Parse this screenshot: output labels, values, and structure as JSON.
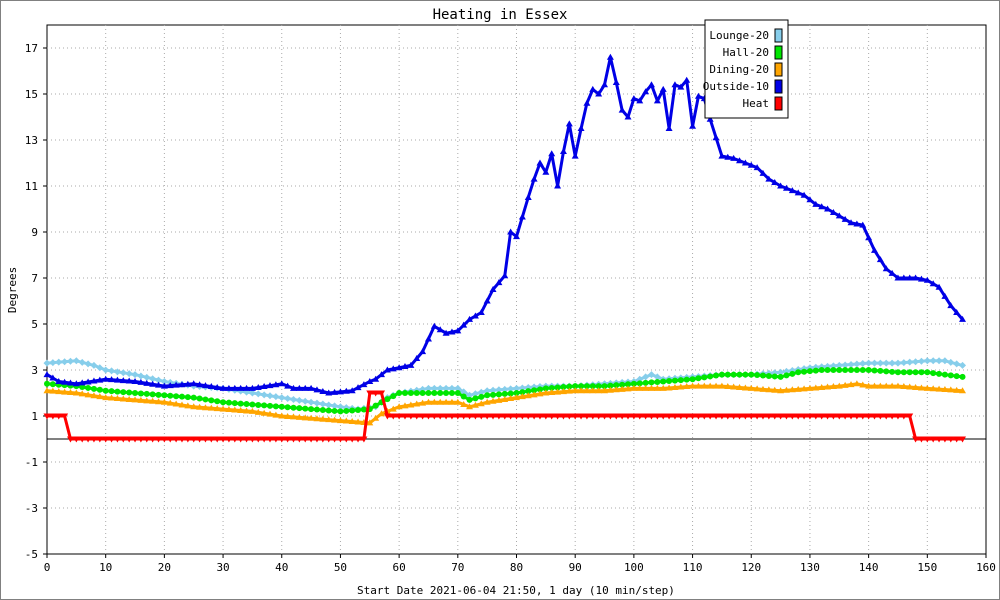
{
  "chart_data": {
    "type": "line",
    "title": "Heating in Essex",
    "xlabel": "Start Date 2021-06-04 21:50, 1 day (10 min/step)",
    "ylabel": "Degrees",
    "xlim": [
      0,
      160
    ],
    "ylim": [
      -5,
      18
    ],
    "x_ticks": [
      0,
      10,
      20,
      30,
      40,
      50,
      60,
      70,
      80,
      90,
      100,
      110,
      120,
      130,
      140,
      150,
      160
    ],
    "y_ticks": [
      -5,
      -3,
      -1,
      1,
      3,
      5,
      7,
      9,
      11,
      13,
      15,
      17
    ],
    "grid": true,
    "legend_position": "top-right",
    "series": [
      {
        "name": "Lounge-20",
        "color": "#87ceeb",
        "marker": "diamond",
        "points": [
          [
            0,
            3.3
          ],
          [
            5,
            3.4
          ],
          [
            8,
            3.2
          ],
          [
            10,
            3.0
          ],
          [
            15,
            2.8
          ],
          [
            20,
            2.5
          ],
          [
            25,
            2.3
          ],
          [
            30,
            2.2
          ],
          [
            35,
            2.0
          ],
          [
            40,
            1.8
          ],
          [
            45,
            1.6
          ],
          [
            50,
            1.4
          ],
          [
            53,
            1.3
          ],
          [
            56,
            1.4
          ],
          [
            58,
            1.8
          ],
          [
            60,
            2.0
          ],
          [
            65,
            2.2
          ],
          [
            70,
            2.2
          ],
          [
            72,
            1.9
          ],
          [
            75,
            2.1
          ],
          [
            80,
            2.2
          ],
          [
            85,
            2.3
          ],
          [
            90,
            2.3
          ],
          [
            95,
            2.4
          ],
          [
            100,
            2.5
          ],
          [
            103,
            2.8
          ],
          [
            105,
            2.6
          ],
          [
            110,
            2.7
          ],
          [
            115,
            2.8
          ],
          [
            120,
            2.8
          ],
          [
            125,
            2.9
          ],
          [
            130,
            3.1
          ],
          [
            135,
            3.2
          ],
          [
            140,
            3.3
          ],
          [
            145,
            3.3
          ],
          [
            150,
            3.4
          ],
          [
            153,
            3.4
          ],
          [
            156,
            3.2
          ]
        ]
      },
      {
        "name": "Hall-20",
        "color": "#00e600",
        "marker": "circle",
        "points": [
          [
            0,
            2.4
          ],
          [
            5,
            2.3
          ],
          [
            10,
            2.1
          ],
          [
            15,
            2.0
          ],
          [
            20,
            1.9
          ],
          [
            25,
            1.8
          ],
          [
            30,
            1.6
          ],
          [
            35,
            1.5
          ],
          [
            40,
            1.4
          ],
          [
            45,
            1.3
          ],
          [
            50,
            1.2
          ],
          [
            55,
            1.3
          ],
          [
            57,
            1.6
          ],
          [
            60,
            2.0
          ],
          [
            65,
            2.0
          ],
          [
            70,
            2.0
          ],
          [
            72,
            1.7
          ],
          [
            75,
            1.9
          ],
          [
            80,
            2.0
          ],
          [
            85,
            2.2
          ],
          [
            90,
            2.3
          ],
          [
            95,
            2.3
          ],
          [
            100,
            2.4
          ],
          [
            105,
            2.5
          ],
          [
            110,
            2.6
          ],
          [
            115,
            2.8
          ],
          [
            120,
            2.8
          ],
          [
            125,
            2.7
          ],
          [
            128,
            2.9
          ],
          [
            132,
            3.0
          ],
          [
            140,
            3.0
          ],
          [
            145,
            2.9
          ],
          [
            150,
            2.9
          ],
          [
            156,
            2.7
          ]
        ]
      },
      {
        "name": "Dining-20",
        "color": "#ffa500",
        "marker": "triangle",
        "points": [
          [
            0,
            2.1
          ],
          [
            5,
            2.0
          ],
          [
            10,
            1.8
          ],
          [
            15,
            1.7
          ],
          [
            20,
            1.6
          ],
          [
            25,
            1.4
          ],
          [
            30,
            1.3
          ],
          [
            35,
            1.2
          ],
          [
            40,
            1.0
          ],
          [
            45,
            0.9
          ],
          [
            50,
            0.8
          ],
          [
            55,
            0.7
          ],
          [
            57,
            1.1
          ],
          [
            60,
            1.4
          ],
          [
            65,
            1.6
          ],
          [
            70,
            1.6
          ],
          [
            72,
            1.4
          ],
          [
            75,
            1.6
          ],
          [
            80,
            1.8
          ],
          [
            85,
            2.0
          ],
          [
            90,
            2.1
          ],
          [
            95,
            2.1
          ],
          [
            100,
            2.2
          ],
          [
            105,
            2.2
          ],
          [
            110,
            2.3
          ],
          [
            115,
            2.3
          ],
          [
            120,
            2.2
          ],
          [
            125,
            2.1
          ],
          [
            130,
            2.2
          ],
          [
            135,
            2.3
          ],
          [
            138,
            2.4
          ],
          [
            140,
            2.3
          ],
          [
            145,
            2.3
          ],
          [
            150,
            2.2
          ],
          [
            156,
            2.1
          ]
        ]
      },
      {
        "name": "Outside-10",
        "color": "#0000e6",
        "marker": "triangle",
        "points": [
          [
            0,
            2.8
          ],
          [
            2,
            2.5
          ],
          [
            5,
            2.4
          ],
          [
            10,
            2.6
          ],
          [
            15,
            2.5
          ],
          [
            20,
            2.3
          ],
          [
            25,
            2.4
          ],
          [
            30,
            2.2
          ],
          [
            35,
            2.2
          ],
          [
            40,
            2.4
          ],
          [
            42,
            2.2
          ],
          [
            45,
            2.2
          ],
          [
            48,
            2.0
          ],
          [
            52,
            2.1
          ],
          [
            55,
            2.5
          ],
          [
            56,
            2.6
          ],
          [
            58,
            3.0
          ],
          [
            60,
            3.1
          ],
          [
            62,
            3.2
          ],
          [
            64,
            3.8
          ],
          [
            66,
            4.9
          ],
          [
            68,
            4.6
          ],
          [
            70,
            4.7
          ],
          [
            72,
            5.2
          ],
          [
            74,
            5.5
          ],
          [
            76,
            6.5
          ],
          [
            78,
            7.1
          ],
          [
            79,
            9.0
          ],
          [
            80,
            8.8
          ],
          [
            82,
            10.5
          ],
          [
            83,
            11.3
          ],
          [
            84,
            12.0
          ],
          [
            85,
            11.6
          ],
          [
            86,
            12.4
          ],
          [
            87,
            11.0
          ],
          [
            88,
            12.5
          ],
          [
            89,
            13.7
          ],
          [
            90,
            12.3
          ],
          [
            91,
            13.5
          ],
          [
            92,
            14.6
          ],
          [
            93,
            15.2
          ],
          [
            94,
            15.0
          ],
          [
            95,
            15.4
          ],
          [
            96,
            16.6
          ],
          [
            97,
            15.5
          ],
          [
            98,
            14.3
          ],
          [
            99,
            14.0
          ],
          [
            100,
            14.8
          ],
          [
            101,
            14.7
          ],
          [
            102,
            15.1
          ],
          [
            103,
            15.4
          ],
          [
            104,
            14.7
          ],
          [
            105,
            15.2
          ],
          [
            106,
            13.5
          ],
          [
            107,
            15.4
          ],
          [
            108,
            15.3
          ],
          [
            109,
            15.6
          ],
          [
            110,
            13.6
          ],
          [
            111,
            14.9
          ],
          [
            112,
            14.8
          ],
          [
            113,
            13.9
          ],
          [
            115,
            12.3
          ],
          [
            117,
            12.2
          ],
          [
            119,
            12.0
          ],
          [
            121,
            11.8
          ],
          [
            123,
            11.3
          ],
          [
            125,
            11.0
          ],
          [
            127,
            10.8
          ],
          [
            129,
            10.6
          ],
          [
            131,
            10.2
          ],
          [
            133,
            10.0
          ],
          [
            135,
            9.7
          ],
          [
            137,
            9.4
          ],
          [
            139,
            9.3
          ],
          [
            141,
            8.2
          ],
          [
            143,
            7.4
          ],
          [
            145,
            7.0
          ],
          [
            148,
            7.0
          ],
          [
            150,
            6.9
          ],
          [
            152,
            6.6
          ],
          [
            154,
            5.8
          ],
          [
            156,
            5.2
          ]
        ]
      },
      {
        "name": "Heat",
        "color": "#ff0000",
        "marker": "triangle-down",
        "points": [
          [
            0,
            1.0
          ],
          [
            3,
            1.0
          ],
          [
            4,
            0.0
          ],
          [
            54,
            0.0
          ],
          [
            55,
            2.0
          ],
          [
            57,
            2.0
          ],
          [
            58,
            1.0
          ],
          [
            147,
            1.0
          ],
          [
            148,
            0.0
          ],
          [
            156,
            0.0
          ]
        ]
      }
    ]
  }
}
